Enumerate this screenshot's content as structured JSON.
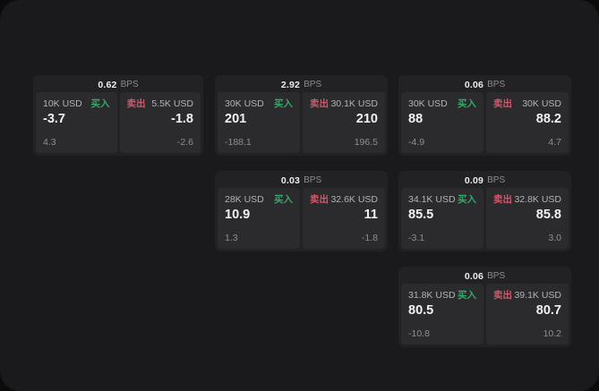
{
  "app": {
    "bps_unit": "BPS",
    "buy_label": "买入",
    "sell_label": "卖出",
    "buy_color": "#35a968",
    "sell_color": "#d1586a",
    "window_bg": "#1a1a1c",
    "card_bg": "#222225",
    "panel_bg": "#2b2b2e"
  },
  "cards": [
    {
      "row": 1,
      "col": 1,
      "bps": "0.62",
      "buy": {
        "amount": "10K USD",
        "price": "-3.7",
        "delta": "4.3"
      },
      "sell": {
        "amount": "5.5K USD",
        "price": "-1.8",
        "delta": "-2.6"
      }
    },
    {
      "row": 1,
      "col": 2,
      "bps": "2.92",
      "buy": {
        "amount": "30K USD",
        "price": "201",
        "delta": "-188.1"
      },
      "sell": {
        "amount": "30.1K USD",
        "price": "210",
        "delta": "196.5"
      }
    },
    {
      "row": 1,
      "col": 3,
      "bps": "0.06",
      "buy": {
        "amount": "30K USD",
        "price": "88",
        "delta": "-4.9"
      },
      "sell": {
        "amount": "30K USD",
        "price": "88.2",
        "delta": "4.7"
      }
    },
    {
      "row": 2,
      "col": 2,
      "bps": "0.03",
      "buy": {
        "amount": "28K USD",
        "price": "10.9",
        "delta": "1.3"
      },
      "sell": {
        "amount": "32.6K USD",
        "price": "11",
        "delta": "-1.8"
      }
    },
    {
      "row": 2,
      "col": 3,
      "bps": "0.09",
      "buy": {
        "amount": "34.1K USD",
        "price": "85.5",
        "delta": "-3.1"
      },
      "sell": {
        "amount": "32.8K USD",
        "price": "85.8",
        "delta": "3.0"
      }
    },
    {
      "row": 3,
      "col": 3,
      "bps": "0.06",
      "buy": {
        "amount": "31.8K USD",
        "price": "80.5",
        "delta": "-10.8"
      },
      "sell": {
        "amount": "39.1K USD",
        "price": "80.7",
        "delta": "10.2"
      }
    }
  ]
}
